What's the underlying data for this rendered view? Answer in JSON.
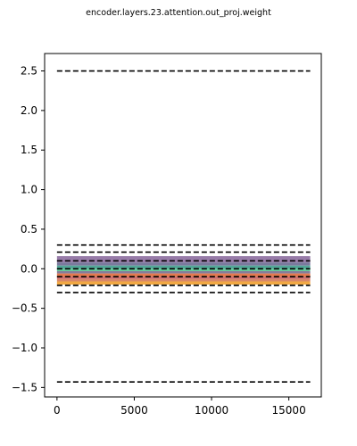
{
  "chart_data": {
    "type": "line",
    "title": "encoder.layers.23.attention.out_proj.weight",
    "xlabel": "",
    "ylabel": "",
    "xlim": [
      -800,
      17100
    ],
    "ylim": [
      -1.62,
      2.72
    ],
    "x_range": [
      0,
      16383
    ],
    "xticks": [
      0,
      5000,
      10000,
      15000
    ],
    "xtick_labels": [
      "0",
      "5000",
      "10000",
      "15000"
    ],
    "yticks": [
      -1.5,
      -1.0,
      -0.5,
      0.0,
      0.5,
      1.0,
      1.5,
      2.0,
      2.5
    ],
    "ytick_labels": [
      "−1.5",
      "−1.0",
      "−0.5",
      "0.0",
      "0.5",
      "1.0",
      "1.5",
      "2.0",
      "2.5"
    ],
    "grid": false,
    "legend": "none",
    "bands": [
      {
        "lower": 0.08,
        "upper": 0.16,
        "color": "#8c6d9e"
      },
      {
        "lower": 0.04,
        "upper": 0.08,
        "color": "#6b6a92"
      },
      {
        "lower": 0.0,
        "upper": 0.04,
        "color": "#3f9d8c"
      },
      {
        "lower": -0.03,
        "upper": 0.0,
        "color": "#52c48d"
      },
      {
        "lower": -0.06,
        "upper": -0.03,
        "color": "#7a6e8f"
      },
      {
        "lower": -0.1,
        "upper": -0.06,
        "color": "#e06a3c"
      },
      {
        "lower": -0.13,
        "upper": -0.1,
        "color": "#c45a5a"
      },
      {
        "lower": -0.16,
        "upper": -0.13,
        "color": "#d47a5a"
      },
      {
        "lower": -0.2,
        "upper": -0.16,
        "color": "#f0a030"
      }
    ],
    "dashed_lines": [
      {
        "y": 2.5,
        "color": "#000000"
      },
      {
        "y": 0.3,
        "color": "#000000"
      },
      {
        "y": 0.21,
        "color": "#000000"
      },
      {
        "y": 0.1,
        "color": "#000000"
      },
      {
        "y": 0.0,
        "color": "#000000"
      },
      {
        "y": -0.1,
        "color": "#000000"
      },
      {
        "y": -0.21,
        "color": "#000000"
      },
      {
        "y": -0.3,
        "color": "#000000"
      },
      {
        "y": -1.43,
        "color": "#000000"
      }
    ]
  }
}
